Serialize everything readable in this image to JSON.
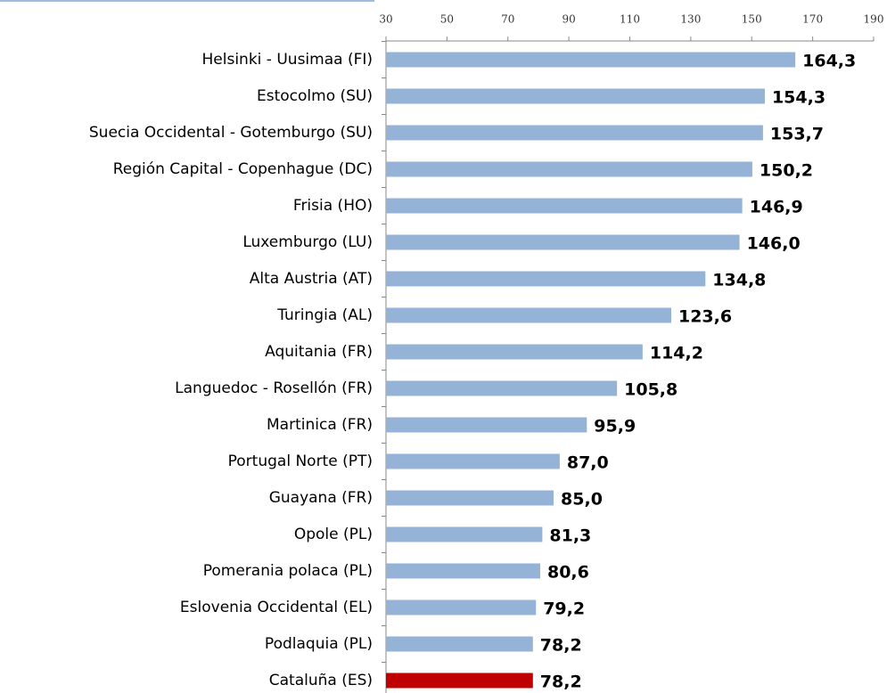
{
  "chart_data": {
    "type": "barh",
    "categories": [
      "Helsinki - Uusimaa (FI)",
      "Estocolmo (SU)",
      "Suecia Occidental - Gotemburgo (SU)",
      "Región Capital - Copenhague (DC)",
      "Frisia (HO)",
      "Luxemburgo (LU)",
      "Alta Austria (AT)",
      "Turingia (AL)",
      "Aquitania (FR)",
      "Languedoc - Rosellón (FR)",
      "Martinica (FR)",
      "Portugal Norte (PT)",
      "Guayana (FR)",
      "Opole (PL)",
      "Pomerania polaca (PL)",
      "Eslovenia Occidental (EL)",
      "Podlaquia (PL)",
      "Cataluña (ES)"
    ],
    "values": [
      164.3,
      154.3,
      153.7,
      150.2,
      146.9,
      146.0,
      134.8,
      123.6,
      114.2,
      105.8,
      95.9,
      87.0,
      85.0,
      81.3,
      80.6,
      79.2,
      78.2,
      78.2
    ],
    "value_labels": [
      "164,3",
      "154,3",
      "153,7",
      "150,2",
      "146,9",
      "146,0",
      "134,8",
      "123,6",
      "114,2",
      "105,8",
      "95,9",
      "87,0",
      "85,0",
      "81,3",
      "80,6",
      "79,2",
      "78,2",
      "78,2"
    ],
    "colors": [
      "#95b3d7",
      "#95b3d7",
      "#95b3d7",
      "#95b3d7",
      "#95b3d7",
      "#95b3d7",
      "#95b3d7",
      "#95b3d7",
      "#95b3d7",
      "#95b3d7",
      "#95b3d7",
      "#95b3d7",
      "#95b3d7",
      "#95b3d7",
      "#95b3d7",
      "#95b3d7",
      "#95b3d7",
      "#c00000"
    ],
    "xlim": [
      30,
      190
    ],
    "xticks": [
      30,
      50,
      70,
      90,
      110,
      130,
      150,
      170,
      190
    ]
  }
}
